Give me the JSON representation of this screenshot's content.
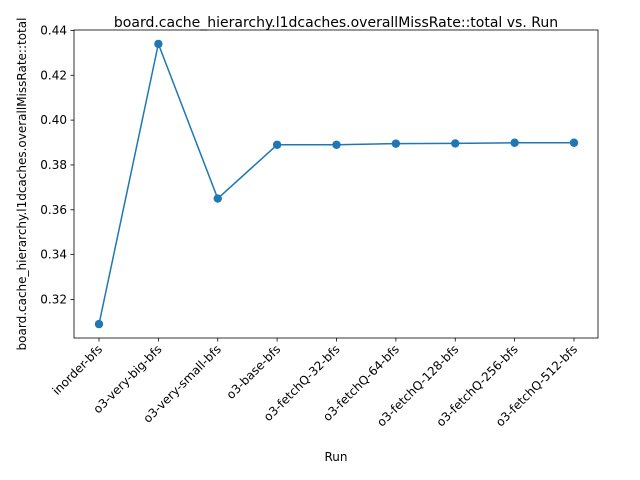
{
  "chart_data": {
    "type": "line",
    "title": "board.cache_hierarchy.l1dcaches.overallMissRate::total vs. Run",
    "xlabel": "Run",
    "ylabel": "board.cache_hierarchy.l1dcaches.overallMissRate::total",
    "categories": [
      "inorder-bfs",
      "o3-very-big-bfs",
      "o3-very-small-bfs",
      "o3-base-bfs",
      "o3-fetchQ-32-bfs",
      "o3-fetchQ-64-bfs",
      "o3-fetchQ-128-bfs",
      "o3-fetchQ-256-bfs",
      "o3-fetchQ-512-bfs"
    ],
    "values": [
      0.309,
      0.434,
      0.365,
      0.389,
      0.389,
      0.3895,
      0.3896,
      0.3899,
      0.3899
    ],
    "ylim": [
      0.3028,
      0.4402
    ],
    "yticks": [
      0.32,
      0.34,
      0.36,
      0.38,
      0.4,
      0.42,
      0.44
    ],
    "grid": false,
    "line_color": "#1f77b4",
    "marker": "circle"
  }
}
